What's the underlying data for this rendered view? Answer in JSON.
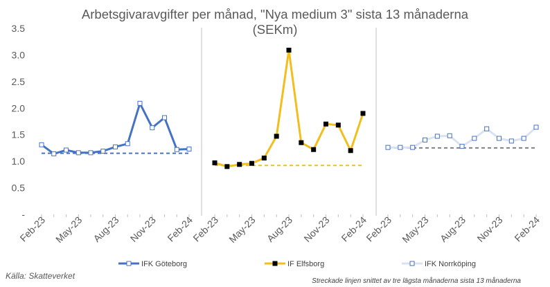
{
  "chart_data": {
    "type": "line",
    "title_line1": "Arbetsgivaravgifter per månad, \"Nya medium 3\" sista 13 månaderna",
    "title_line2": "(SEKm)",
    "ylim": [
      0,
      3.5
    ],
    "y_ticks": [
      "3.5",
      "3.0",
      "2.5",
      "2.0",
      "1.5",
      "1.0",
      "0.5",
      "-"
    ],
    "x_tick_labels": [
      "Feb-23",
      "May-23",
      "Aug-23",
      "Nov-23",
      "Feb-24"
    ],
    "x": [
      "Feb-23",
      "Mar-23",
      "Apr-23",
      "May-23",
      "Jun-23",
      "Jul-23",
      "Aug-23",
      "Sep-23",
      "Oct-23",
      "Nov-23",
      "Dec-23",
      "Jan-24",
      "Feb-24"
    ],
    "panels": [
      {
        "name": "IFK Göteborg",
        "color": "#4472C4",
        "marker": "hollow-square",
        "values": [
          1.31,
          1.14,
          1.21,
          1.16,
          1.16,
          1.19,
          1.27,
          1.33,
          2.09,
          1.63,
          1.82,
          1.22,
          1.23
        ],
        "baseline": 1.15
      },
      {
        "name": "IF Elfsborg",
        "color": "#F2BE1D",
        "marker": "filled-square",
        "values": [
          0.97,
          0.9,
          0.94,
          0.96,
          1.06,
          1.47,
          3.09,
          1.35,
          1.22,
          1.7,
          1.68,
          1.2,
          1.9
        ],
        "baseline": 0.92
      },
      {
        "name": "IFK Norrköping",
        "color": "#D9E1F2",
        "marker": "hollow-square",
        "values": [
          1.26,
          1.26,
          1.26,
          1.4,
          1.47,
          1.48,
          1.28,
          1.43,
          1.61,
          1.43,
          1.38,
          1.43,
          1.64
        ],
        "baseline": 1.25
      }
    ],
    "source": "Källa: Skatteverket",
    "note": "Streckade linjen snittet av tre lägsta månaderna sista 13 månaderna",
    "grid": false,
    "legend_position": "bottom"
  }
}
